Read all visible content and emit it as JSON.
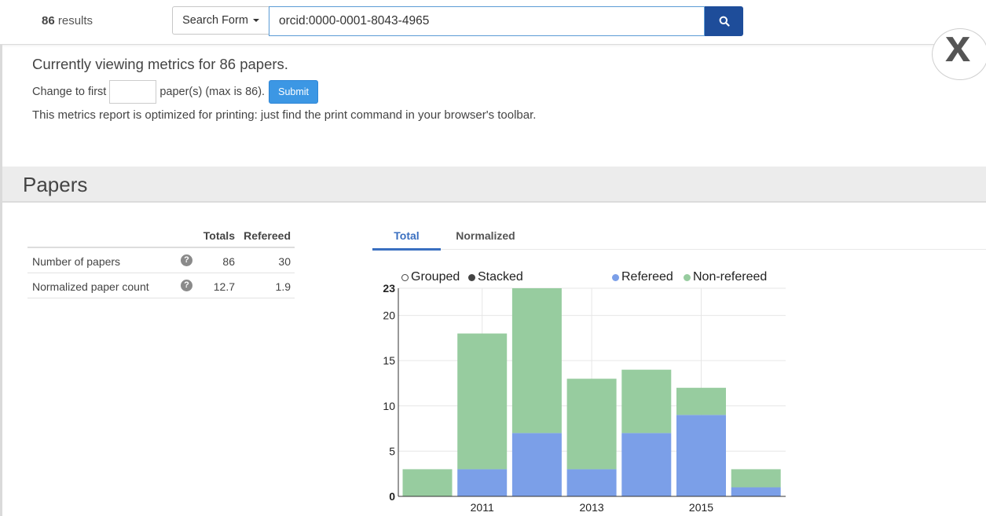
{
  "header": {
    "results_count": "86",
    "results_label": " results",
    "search_form_label": "Search Form",
    "search_value": "orcid:0000-0001-8043-4965"
  },
  "close_label": "x",
  "metrics_intro": {
    "headline": "Currently viewing metrics for 86 papers.",
    "change_prefix": "Change to first",
    "change_suffix": "paper(s) (max is 86).",
    "submit_label": "Submit",
    "print_note": "This metrics report is optimized for printing: just find the print command in your browser's toolbar."
  },
  "section": {
    "title": "Papers"
  },
  "metrics_table": {
    "headers": {
      "totals": "Totals",
      "refereed": "Refereed"
    },
    "rows": [
      {
        "label": "Number of papers",
        "help": "?",
        "totals": "86",
        "refereed": "30"
      },
      {
        "label": "Normalized paper count",
        "help": "?",
        "totals": "12.7",
        "refereed": "1.9"
      }
    ]
  },
  "tabs": [
    {
      "label": "Total",
      "active": true
    },
    {
      "label": "Normalized",
      "active": false
    }
  ],
  "legend": {
    "grouped": "Grouped",
    "stacked": "Stacked",
    "refereed": "Refereed",
    "non_refereed": "Non-refereed"
  },
  "colors": {
    "refereed": "#7b9fe8",
    "non_refereed": "#97cc9f",
    "search_button": "#1e4d9a",
    "submit_button": "#3c97e4",
    "active_tab": "#3a6fc0"
  },
  "chart_data": {
    "type": "bar",
    "stacked": true,
    "categories": [
      "2010",
      "2011",
      "2012",
      "2013",
      "2014",
      "2015",
      "2016"
    ],
    "series": [
      {
        "name": "Refereed",
        "values": [
          0,
          3,
          7,
          3,
          7,
          9,
          1
        ]
      },
      {
        "name": "Non-refereed",
        "values": [
          3,
          15,
          16,
          10,
          7,
          3,
          2
        ]
      }
    ],
    "x_tick_labels": [
      "2011",
      "2013",
      "2015"
    ],
    "y_ticks": [
      0,
      5,
      10,
      15,
      20,
      23
    ],
    "ylim": [
      0,
      23
    ],
    "grid": true,
    "legend_position": "top"
  }
}
